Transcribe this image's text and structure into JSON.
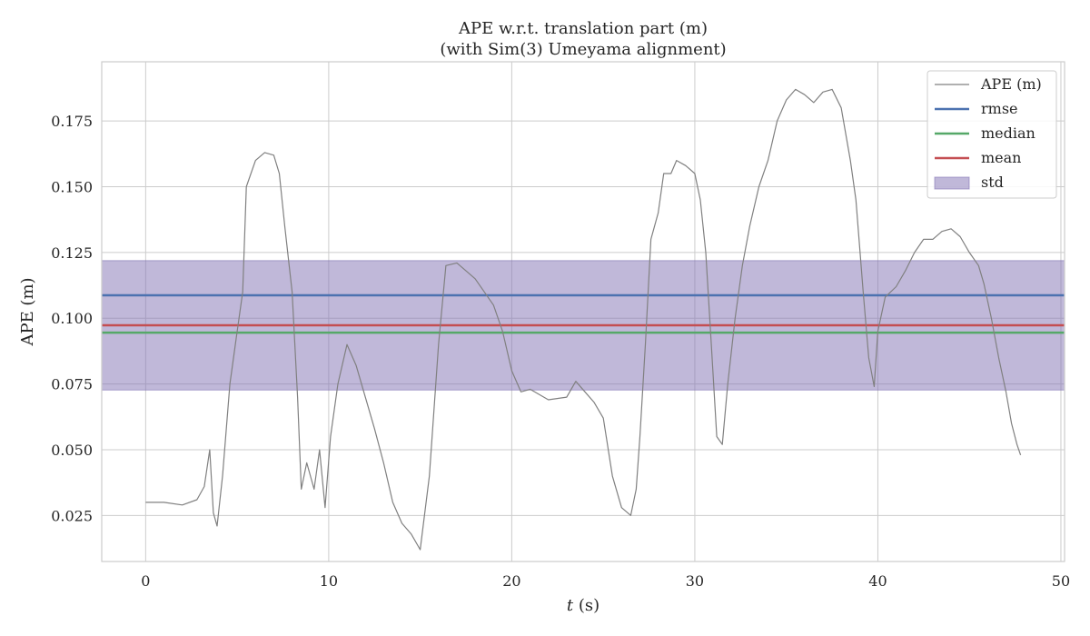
{
  "chart_data": {
    "type": "line",
    "title": "APE w.r.t. translation part (m)",
    "subtitle": "(with Sim(3) Umeyama alignment)",
    "xlabel_italic": "t",
    "xlabel_rest": " (s)",
    "ylabel": "APE (m)",
    "xlim": [
      -2.4,
      50.2
    ],
    "ylim": [
      0.0075,
      0.1975
    ],
    "xticks": [
      0,
      10,
      20,
      30,
      40,
      50
    ],
    "xtick_labels": [
      "0",
      "10",
      "20",
      "30",
      "40",
      "50"
    ],
    "yticks": [
      0.025,
      0.05,
      0.075,
      0.1,
      0.125,
      0.15,
      0.175
    ],
    "ytick_labels": [
      "0.025",
      "0.050",
      "0.075",
      "0.100",
      "0.125",
      "0.150",
      "0.175"
    ],
    "grid": true,
    "legend_position": "top-right",
    "series": [
      {
        "name": "APE (m)",
        "color": "#808080",
        "points": [
          [
            0.0,
            0.03
          ],
          [
            1.0,
            0.03
          ],
          [
            2.0,
            0.029
          ],
          [
            2.8,
            0.031
          ],
          [
            3.2,
            0.036
          ],
          [
            3.5,
            0.05
          ],
          [
            3.7,
            0.026
          ],
          [
            3.9,
            0.021
          ],
          [
            4.2,
            0.04
          ],
          [
            4.6,
            0.075
          ],
          [
            5.0,
            0.095
          ],
          [
            5.3,
            0.11
          ],
          [
            5.5,
            0.15
          ],
          [
            6.0,
            0.16
          ],
          [
            6.5,
            0.163
          ],
          [
            7.0,
            0.162
          ],
          [
            7.3,
            0.155
          ],
          [
            7.6,
            0.135
          ],
          [
            8.0,
            0.11
          ],
          [
            8.3,
            0.07
          ],
          [
            8.5,
            0.035
          ],
          [
            8.8,
            0.045
          ],
          [
            9.2,
            0.035
          ],
          [
            9.5,
            0.05
          ],
          [
            9.8,
            0.028
          ],
          [
            10.1,
            0.055
          ],
          [
            10.5,
            0.075
          ],
          [
            11.0,
            0.09
          ],
          [
            11.5,
            0.082
          ],
          [
            12.0,
            0.07
          ],
          [
            12.5,
            0.058
          ],
          [
            13.0,
            0.045
          ],
          [
            13.5,
            0.03
          ],
          [
            14.0,
            0.022
          ],
          [
            14.5,
            0.018
          ],
          [
            15.0,
            0.012
          ],
          [
            15.5,
            0.04
          ],
          [
            16.0,
            0.09
          ],
          [
            16.4,
            0.12
          ],
          [
            17.0,
            0.121
          ],
          [
            17.5,
            0.118
          ],
          [
            18.0,
            0.115
          ],
          [
            18.5,
            0.11
          ],
          [
            19.0,
            0.105
          ],
          [
            19.5,
            0.095
          ],
          [
            20.0,
            0.08
          ],
          [
            20.5,
            0.072
          ],
          [
            21.0,
            0.073
          ],
          [
            22.0,
            0.069
          ],
          [
            23.0,
            0.07
          ],
          [
            23.5,
            0.076
          ],
          [
            24.0,
            0.072
          ],
          [
            24.5,
            0.068
          ],
          [
            25.0,
            0.062
          ],
          [
            25.5,
            0.04
          ],
          [
            26.0,
            0.028
          ],
          [
            26.5,
            0.025
          ],
          [
            26.8,
            0.035
          ],
          [
            27.0,
            0.055
          ],
          [
            27.3,
            0.09
          ],
          [
            27.6,
            0.13
          ],
          [
            28.0,
            0.14
          ],
          [
            28.3,
            0.155
          ],
          [
            28.7,
            0.155
          ],
          [
            29.0,
            0.16
          ],
          [
            29.5,
            0.158
          ],
          [
            30.0,
            0.155
          ],
          [
            30.3,
            0.145
          ],
          [
            30.6,
            0.125
          ],
          [
            30.9,
            0.09
          ],
          [
            31.2,
            0.055
          ],
          [
            31.5,
            0.052
          ],
          [
            31.8,
            0.075
          ],
          [
            32.2,
            0.1
          ],
          [
            32.6,
            0.12
          ],
          [
            33.0,
            0.135
          ],
          [
            33.5,
            0.15
          ],
          [
            34.0,
            0.16
          ],
          [
            34.5,
            0.175
          ],
          [
            35.0,
            0.183
          ],
          [
            35.5,
            0.187
          ],
          [
            36.0,
            0.185
          ],
          [
            36.5,
            0.182
          ],
          [
            37.0,
            0.186
          ],
          [
            37.5,
            0.187
          ],
          [
            38.0,
            0.18
          ],
          [
            38.5,
            0.16
          ],
          [
            38.8,
            0.145
          ],
          [
            39.2,
            0.11
          ],
          [
            39.5,
            0.085
          ],
          [
            39.8,
            0.074
          ],
          [
            40.0,
            0.095
          ],
          [
            40.4,
            0.108
          ],
          [
            41.0,
            0.112
          ],
          [
            41.5,
            0.118
          ],
          [
            42.0,
            0.125
          ],
          [
            42.5,
            0.13
          ],
          [
            43.0,
            0.13
          ],
          [
            43.5,
            0.133
          ],
          [
            44.0,
            0.134
          ],
          [
            44.5,
            0.131
          ],
          [
            45.0,
            0.125
          ],
          [
            45.5,
            0.12
          ],
          [
            45.8,
            0.113
          ],
          [
            46.2,
            0.1
          ],
          [
            46.6,
            0.085
          ],
          [
            47.0,
            0.072
          ],
          [
            47.3,
            0.06
          ],
          [
            47.6,
            0.052
          ],
          [
            47.8,
            0.048
          ]
        ]
      },
      {
        "name": "rmse",
        "color": "#4c72b0",
        "value": 0.1087
      },
      {
        "name": "median",
        "color": "#55a868",
        "value": 0.0945
      },
      {
        "name": "mean",
        "color": "#c44e52",
        "value": 0.0973
      },
      {
        "name": "std",
        "color": "#8172b3",
        "range": [
          0.0727,
          0.1219
        ]
      }
    ]
  }
}
